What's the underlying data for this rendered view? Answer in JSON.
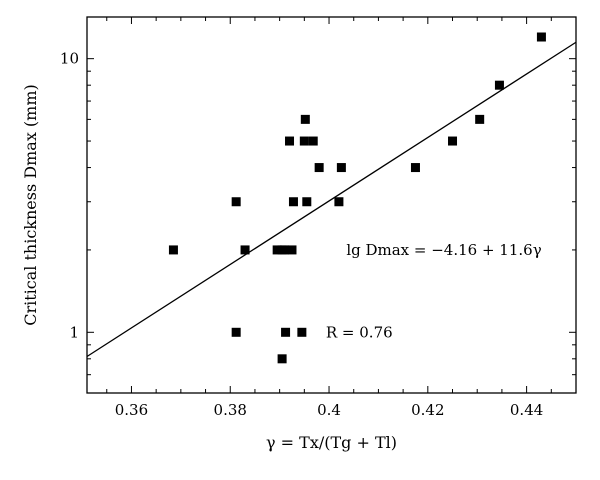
{
  "chart_data": {
    "type": "scatter",
    "xlabel": "γ = Tx/(Tg + Tl)",
    "ylabel": "Critical thickness Dmax (mm)",
    "xlim": [
      0.351,
      0.45
    ],
    "ylim": [
      0.6,
      14.2
    ],
    "yscale": "log",
    "grid": false,
    "legend": "none",
    "x_ticks": [
      "0.36",
      "0.38",
      "0.4",
      "0.42",
      "0.44"
    ],
    "x_tick_values": [
      0.36,
      0.38,
      0.4,
      0.42,
      0.44
    ],
    "y_ticks": [
      "1",
      "10"
    ],
    "y_tick_values": [
      1,
      10
    ],
    "points": [
      {
        "x": 0.3685,
        "y": 2
      },
      {
        "x": 0.3812,
        "y": 3
      },
      {
        "x": 0.3812,
        "y": 1
      },
      {
        "x": 0.383,
        "y": 2
      },
      {
        "x": 0.3895,
        "y": 2
      },
      {
        "x": 0.3905,
        "y": 2
      },
      {
        "x": 0.391,
        "y": 2
      },
      {
        "x": 0.3905,
        "y": 0.8
      },
      {
        "x": 0.3912,
        "y": 1
      },
      {
        "x": 0.392,
        "y": 5
      },
      {
        "x": 0.3925,
        "y": 2
      },
      {
        "x": 0.3928,
        "y": 3
      },
      {
        "x": 0.3945,
        "y": 1
      },
      {
        "x": 0.395,
        "y": 5
      },
      {
        "x": 0.3952,
        "y": 6
      },
      {
        "x": 0.3955,
        "y": 3
      },
      {
        "x": 0.3968,
        "y": 5
      },
      {
        "x": 0.398,
        "y": 4
      },
      {
        "x": 0.402,
        "y": 3
      },
      {
        "x": 0.4025,
        "y": 4
      },
      {
        "x": 0.4175,
        "y": 4
      },
      {
        "x": 0.425,
        "y": 5
      },
      {
        "x": 0.4305,
        "y": 6
      },
      {
        "x": 0.4345,
        "y": 8
      },
      {
        "x": 0.443,
        "y": 12
      }
    ],
    "fit_line": {
      "intercept": -4.16,
      "slope": 11.6,
      "x_range": [
        0.351,
        0.45
      ]
    },
    "annotations": [
      {
        "text": "lg Dmax = −4.16 + 11.6γ",
        "x": 0.4035,
        "y": 2
      },
      {
        "text": "R = 0.76",
        "x": 0.3945,
        "y": 1
      }
    ],
    "marker": "square",
    "marker_color": "#000000"
  }
}
